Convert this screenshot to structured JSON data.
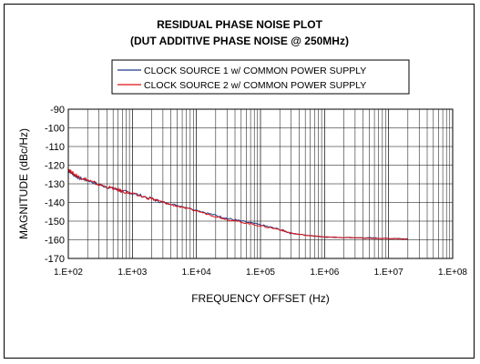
{
  "chart_data": {
    "type": "line",
    "title": "RESIDUAL PHASE NOISE PLOT",
    "subtitle": "(DUT ADDITIVE PHASE NOISE @ 250MHz)",
    "xlabel": "FREQUENCY OFFSET (Hz)",
    "ylabel": "MAGNITUDE (dBc/Hz)",
    "x_scale": "log",
    "xlim": [
      100,
      100000000
    ],
    "ylim": [
      -170,
      -90
    ],
    "x_ticks": [
      100,
      1000,
      10000,
      100000,
      1000000,
      10000000,
      100000000
    ],
    "x_tick_labels": [
      "1.E+02",
      "1.E+03",
      "1.E+04",
      "1.E+05",
      "1.E+06",
      "1.E+07",
      "1.E+08"
    ],
    "y_ticks": [
      -90,
      -100,
      -110,
      -120,
      -130,
      -140,
      -150,
      -160,
      -170
    ],
    "y_tick_labels": [
      "-90",
      "-100",
      "-110",
      "-120",
      "-130",
      "-140",
      "-150",
      "-160",
      "-170"
    ],
    "grid": true,
    "legend_position": "top",
    "series": [
      {
        "name": "CLOCK SOURCE 1 w/ COMMON POWER SUPPLY",
        "color": "#1f3a8a",
        "x": [
          100,
          120,
          150,
          200,
          300,
          500,
          700,
          1000,
          2000,
          3000,
          5000,
          10000,
          20000,
          30000,
          50000,
          100000,
          200000,
          300000,
          500000,
          1000000,
          2000000,
          5000000,
          10000000,
          20000000
        ],
        "y": [
          -123,
          -125,
          -127,
          -128,
          -130.5,
          -132.5,
          -134,
          -135,
          -138,
          -140,
          -141.5,
          -144,
          -147,
          -148.5,
          -150,
          -152,
          -154.5,
          -156.5,
          -157.5,
          -158.5,
          -158.8,
          -159,
          -159.3,
          -159.5
        ]
      },
      {
        "name": "CLOCK SOURCE 2 w/ COMMON POWER SUPPLY",
        "color": "#e01010",
        "x": [
          100,
          120,
          150,
          200,
          300,
          500,
          700,
          1000,
          2000,
          3000,
          5000,
          10000,
          20000,
          30000,
          50000,
          100000,
          200000,
          300000,
          500000,
          1000000,
          2000000,
          5000000,
          10000000,
          20000000
        ],
        "y": [
          -122,
          -124.5,
          -126.5,
          -128,
          -130.5,
          -132.5,
          -134,
          -135.5,
          -138,
          -140,
          -142,
          -144.5,
          -147.5,
          -149,
          -150.5,
          -152.5,
          -154.5,
          -156.5,
          -157.5,
          -158.5,
          -158.8,
          -159.2,
          -159.4,
          -159.6
        ]
      }
    ]
  }
}
